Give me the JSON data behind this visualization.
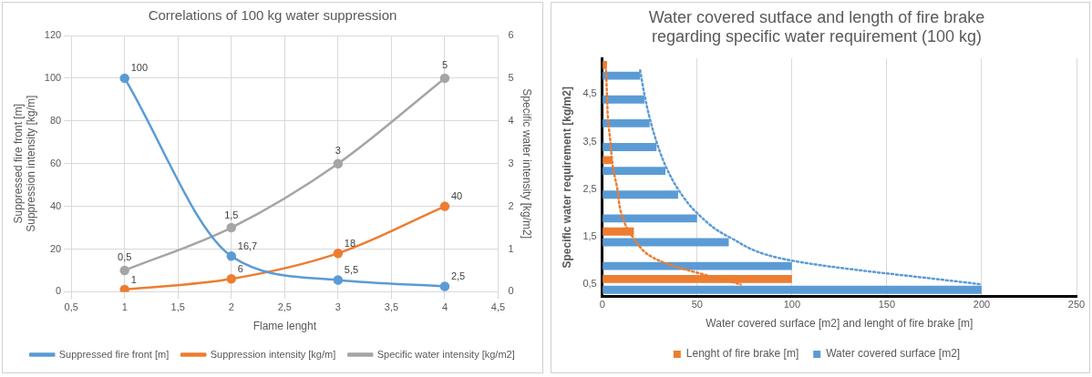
{
  "chart_data": [
    {
      "type": "line",
      "title": "Correlations of 100 kg water suppression",
      "xlabel": "Flame lenght",
      "ylabel": "Suppressed fire front [m]\nSuppression intensity [kg/m]",
      "y2label": "Specific water intensity [kg/m2]",
      "x": [
        1,
        2,
        3,
        4
      ],
      "series": [
        {
          "name": "Suppressed fire front [m]",
          "color": "#5b9bd5",
          "values": [
            100,
            16.7,
            5.5,
            2.5
          ],
          "value_labels": [
            "100",
            "16,7",
            "5,5",
            "2,5"
          ]
        },
        {
          "name": "Suppression intensity [kg/m]",
          "color": "#ed7d31",
          "values": [
            1,
            6,
            18,
            40
          ],
          "value_labels": [
            "1",
            "6",
            "18",
            "40"
          ]
        },
        {
          "name": "Specific water intensity [kg/m2]",
          "color": "#a5a5a5",
          "axis": "y2",
          "values": [
            0.5,
            1.5,
            3,
            5
          ],
          "value_labels": [
            "0,5",
            "1,5",
            "3",
            "5"
          ]
        }
      ],
      "xlim": [
        0.5,
        4.5
      ],
      "xticks": [
        {
          "value": 0.5,
          "label": "0,5"
        },
        1,
        {
          "value": 1.5,
          "label": "1,5"
        },
        2,
        {
          "value": 2.5,
          "label": "2,5"
        },
        3,
        {
          "value": 3.5,
          "label": "3,5"
        },
        4,
        {
          "value": 4.5,
          "label": "4,5"
        }
      ],
      "ylim": [
        0,
        120
      ],
      "yticks": [
        0,
        20,
        40,
        60,
        80,
        100,
        120
      ],
      "y2lim": [
        0,
        6
      ],
      "y2ticks": [
        0,
        1,
        2,
        3,
        4,
        5,
        6
      ],
      "grid": true,
      "legend": "bottom",
      "marker": "circle",
      "line_style": "solid"
    },
    {
      "type": "bar",
      "orientation": "horizontal",
      "title": "Water covered sutface and length of fire brake\nregarding specific water requirement (100 kg)",
      "xlabel": "Water covered surface [m2] and lenght of fire brake [m]",
      "ylabel": "Specific water requirement [kg/m2]",
      "categories": [
        null,
        "4,5",
        null,
        "3,5",
        null,
        "2,5",
        null,
        "1,5",
        null,
        "0,5"
      ],
      "series": [
        {
          "name": "Lenght of fire brake [m]",
          "color": "#ed7d31",
          "values": [
            2.5,
            null,
            null,
            null,
            5.5,
            null,
            null,
            16.7,
            null,
            100
          ]
        },
        {
          "name": "Water covered surface [m2]",
          "color": "#5b9bd5",
          "values": [
            20,
            22.2,
            25,
            28.6,
            33.3,
            40,
            50,
            66.7,
            100,
            200
          ]
        },
        {
          "type": "line",
          "color": "#ed7d31",
          "line_style": "dotted",
          "marker": "none",
          "values": [
            2,
            2.5,
            3,
            4.3,
            5.5,
            8,
            10,
            16,
            30,
            73
          ]
        },
        {
          "type": "line",
          "color": "#5b9bd5",
          "line_style": "dotted",
          "marker": "none",
          "values": [
            20,
            22.2,
            25,
            28.6,
            33.3,
            40,
            50,
            66.7,
            100,
            200
          ]
        }
      ],
      "xlim": [
        0,
        250
      ],
      "xticks": [
        0,
        50,
        100,
        150,
        200,
        250
      ],
      "grid": "x",
      "legend": "bottom"
    }
  ]
}
